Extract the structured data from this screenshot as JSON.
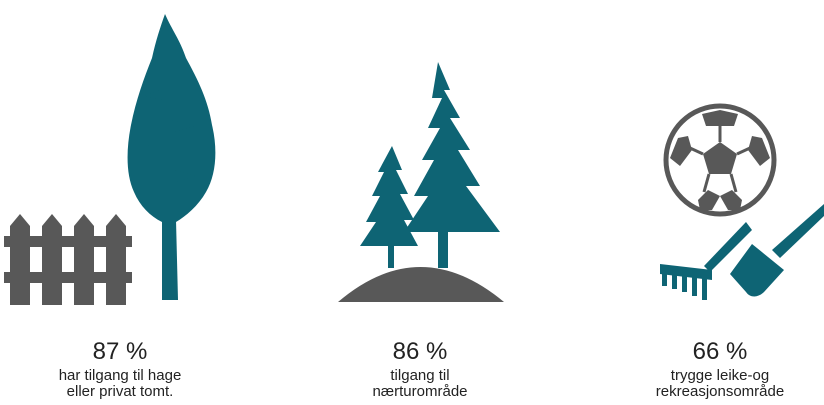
{
  "colors": {
    "teal": "#0e6474",
    "gray": "#585858",
    "text": "#222222"
  },
  "stats": [
    {
      "percent": "87 %",
      "line1": "har tilgang til hage",
      "line2": "eller privat tomt.",
      "icon": "fence-and-tree-icon"
    },
    {
      "percent": "86 %",
      "line1": "tilgang til",
      "line2": "nærturområde",
      "icon": "trees-on-hill-icon"
    },
    {
      "percent": "66 %",
      "line1": "trygge leike-og",
      "line2": "rekreasjonsområde",
      "icon": "ball-rake-shovel-icon"
    }
  ]
}
